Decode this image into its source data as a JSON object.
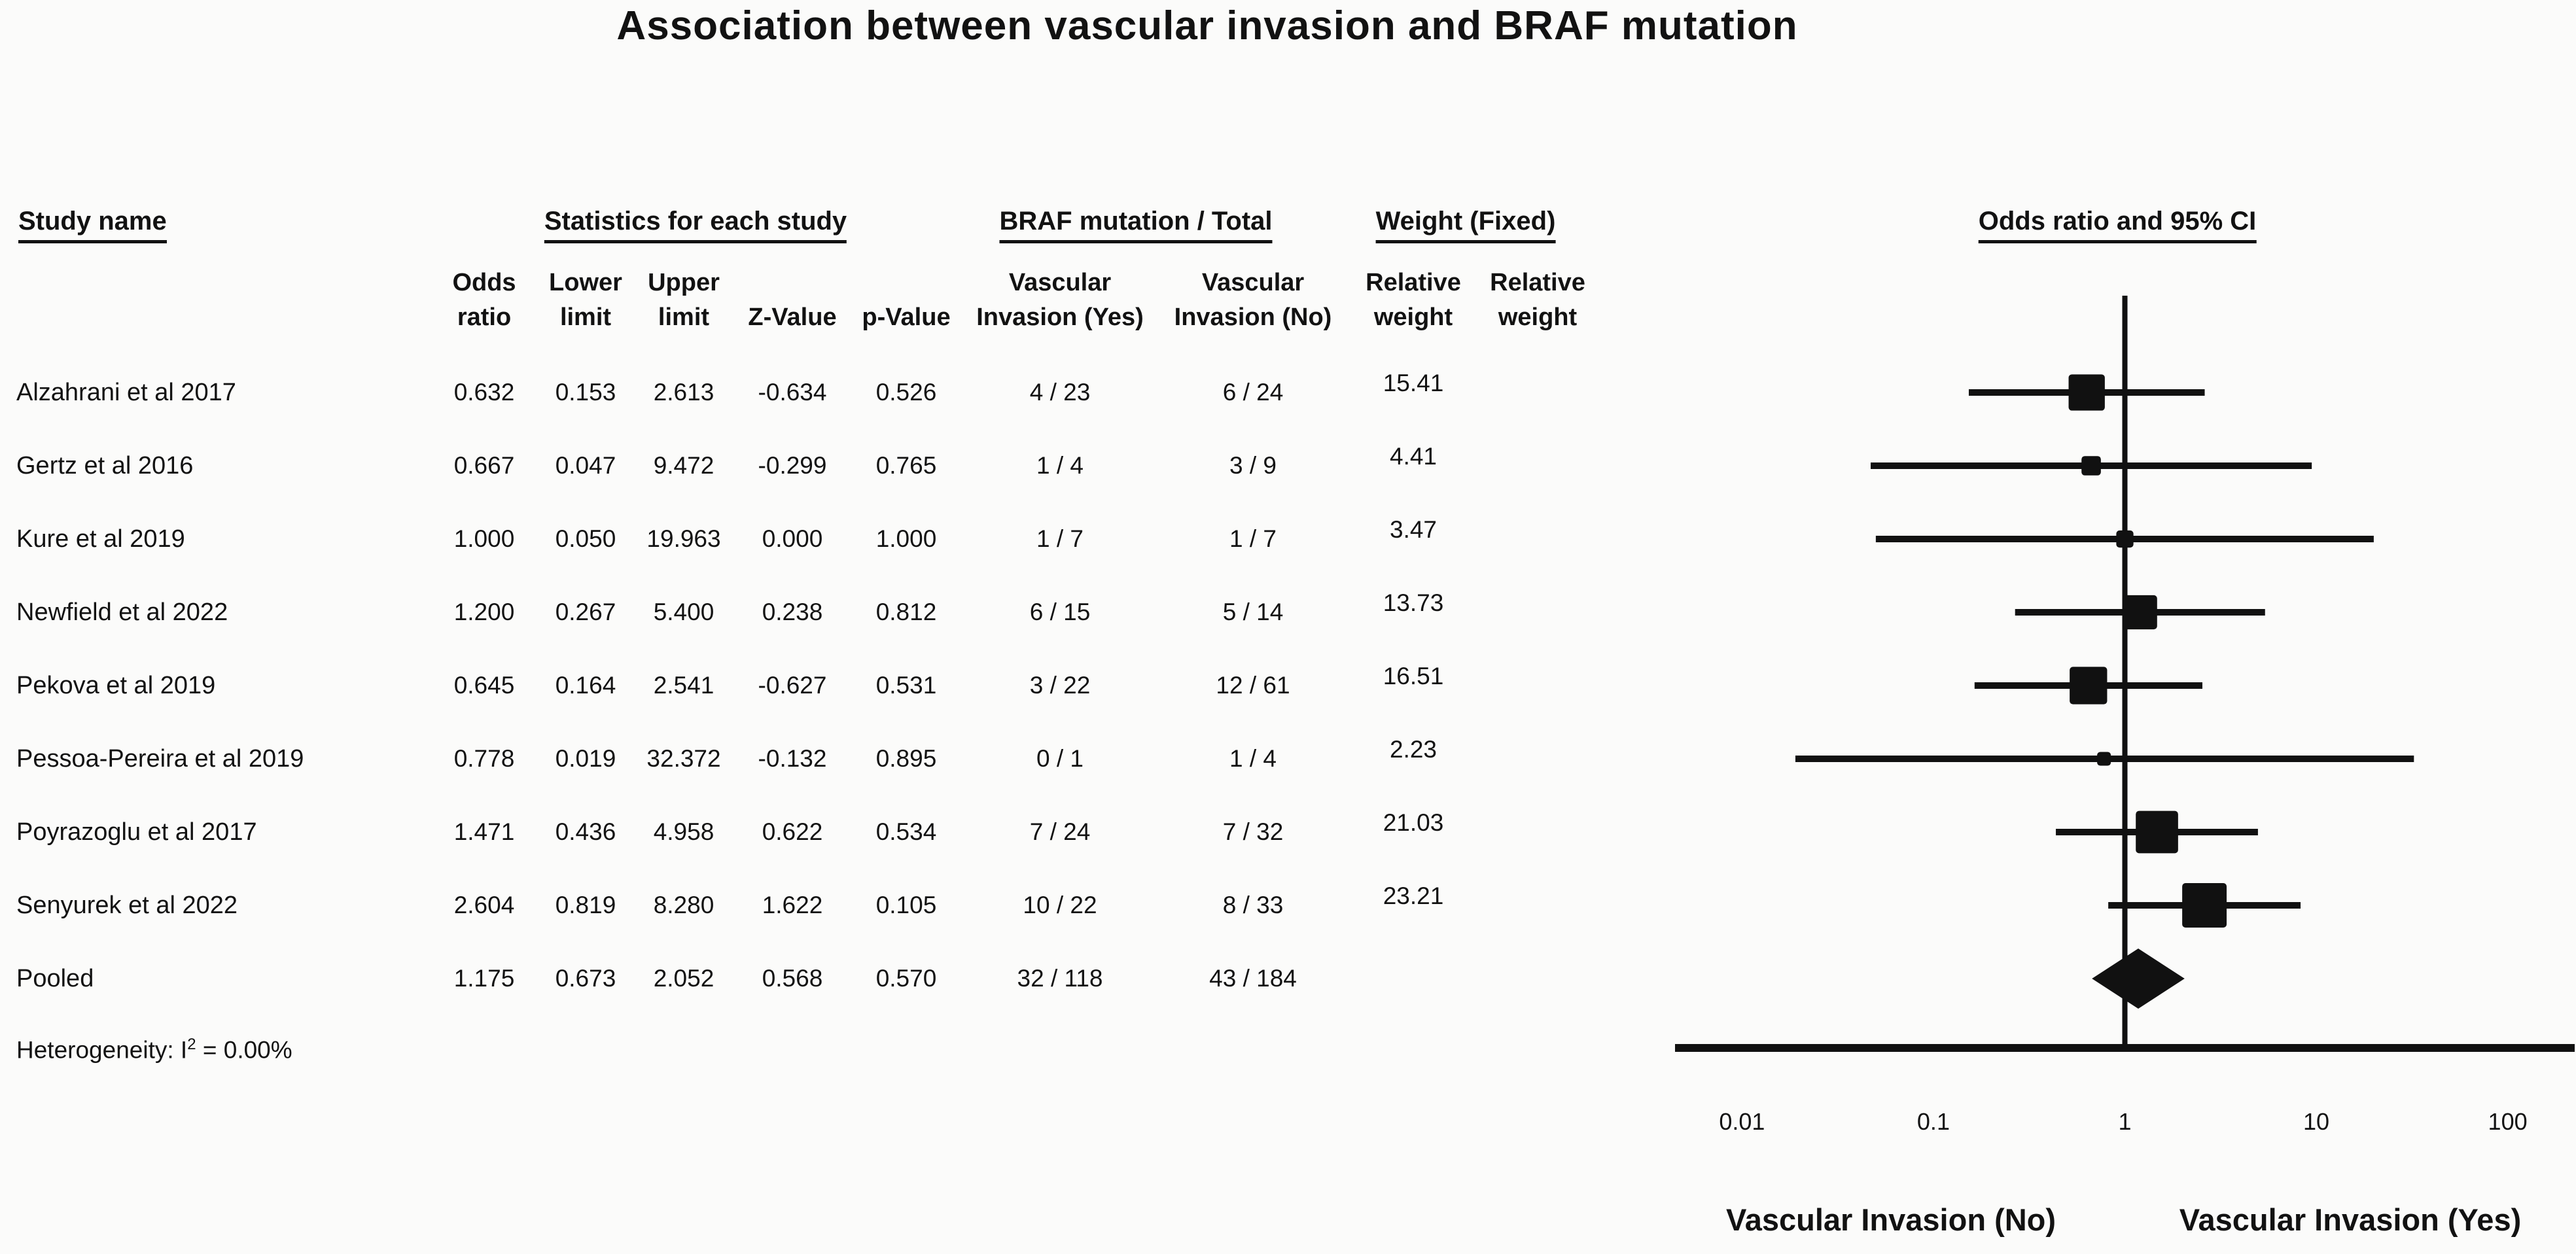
{
  "page": {
    "background": "#fbfbfa",
    "text_color": "#121212"
  },
  "chart_data": {
    "type": "forest",
    "title": "Association between vascular invasion and BRAF mutation",
    "plot_title": "Odds ratio and 95% CI",
    "marker_color": "#111111",
    "group_headers": {
      "study": "Study name",
      "statistics": "Statistics for each study",
      "braf": "BRAF mutation / Total",
      "weight": "Weight (Fixed)"
    },
    "columns": [
      {
        "id": "odds_ratio",
        "line1": "Odds",
        "line2": "ratio"
      },
      {
        "id": "lower_limit",
        "line1": "Lower",
        "line2": "limit"
      },
      {
        "id": "upper_limit",
        "line1": "Upper",
        "line2": "limit"
      },
      {
        "id": "z_value",
        "line1": "",
        "line2": "Z-Value"
      },
      {
        "id": "p_value",
        "line1": "",
        "line2": "p-Value"
      },
      {
        "id": "braf_yes",
        "line1": "Vascular",
        "line2": "Invasion (Yes)"
      },
      {
        "id": "braf_no",
        "line1": "Vascular",
        "line2": "Invasion (No)"
      },
      {
        "id": "relative_weight",
        "line1": "Relative",
        "line2": "weight"
      },
      {
        "id": "relative_weight_2",
        "line1": "Relative",
        "line2": "weight"
      }
    ],
    "studies": [
      {
        "name": "Alzahrani et al 2017",
        "odds_ratio": "0.632",
        "lower_limit": "0.153",
        "upper_limit": "2.613",
        "z_value": "-0.634",
        "p_value": "0.526",
        "braf_yes": "4 / 23",
        "braf_no": "6 / 24",
        "relative_weight": "15.41",
        "is_pooled": false
      },
      {
        "name": "Gertz et al 2016",
        "odds_ratio": "0.667",
        "lower_limit": "0.047",
        "upper_limit": "9.472",
        "z_value": "-0.299",
        "p_value": "0.765",
        "braf_yes": "1 / 4",
        "braf_no": "3 / 9",
        "relative_weight": "4.41",
        "is_pooled": false
      },
      {
        "name": "Kure et al 2019",
        "odds_ratio": "1.000",
        "lower_limit": "0.050",
        "upper_limit": "19.963",
        "z_value": "0.000",
        "p_value": "1.000",
        "braf_yes": "1 / 7",
        "braf_no": "1 / 7",
        "relative_weight": "3.47",
        "is_pooled": false
      },
      {
        "name": "Newfield et al 2022",
        "odds_ratio": "1.200",
        "lower_limit": "0.267",
        "upper_limit": "5.400",
        "z_value": "0.238",
        "p_value": "0.812",
        "braf_yes": "6 / 15",
        "braf_no": "5 / 14",
        "relative_weight": "13.73",
        "is_pooled": false
      },
      {
        "name": "Pekova et al 2019",
        "odds_ratio": "0.645",
        "lower_limit": "0.164",
        "upper_limit": "2.541",
        "z_value": "-0.627",
        "p_value": "0.531",
        "braf_yes": "3 / 22",
        "braf_no": "12 / 61",
        "relative_weight": "16.51",
        "is_pooled": false
      },
      {
        "name": "Pessoa-Pereira et al 2019",
        "odds_ratio": "0.778",
        "lower_limit": "0.019",
        "upper_limit": "32.372",
        "z_value": "-0.132",
        "p_value": "0.895",
        "braf_yes": "0 / 1",
        "braf_no": "1 / 4",
        "relative_weight": "2.23",
        "is_pooled": false
      },
      {
        "name": "Poyrazoglu et al 2017",
        "odds_ratio": "1.471",
        "lower_limit": "0.436",
        "upper_limit": "4.958",
        "z_value": "0.622",
        "p_value": "0.534",
        "braf_yes": "7 / 24",
        "braf_no": "7 / 32",
        "relative_weight": "21.03",
        "is_pooled": false
      },
      {
        "name": "Senyurek et al 2022",
        "odds_ratio": "2.604",
        "lower_limit": "0.819",
        "upper_limit": "8.280",
        "z_value": "1.622",
        "p_value": "0.105",
        "braf_yes": "10 / 22",
        "braf_no": "8 / 33",
        "relative_weight": "23.21",
        "is_pooled": false
      },
      {
        "name": "Pooled",
        "odds_ratio": "1.175",
        "lower_limit": "0.673",
        "upper_limit": "2.052",
        "z_value": "0.568",
        "p_value": "0.570",
        "braf_yes": "32 / 118",
        "braf_no": "43 / 184",
        "relative_weight": "",
        "is_pooled": true
      }
    ],
    "heterogeneity": {
      "prefix": "Heterogeneity: I",
      "sup": "2",
      "suffix": " = 0.00%"
    },
    "x_axis": {
      "scale": "log10",
      "min": 0.01,
      "max": 100,
      "ticks": [
        {
          "label": "0.01",
          "value": 0.01
        },
        {
          "label": "0.1",
          "value": 0.1
        },
        {
          "label": "1",
          "value": 1
        },
        {
          "label": "10",
          "value": 10
        },
        {
          "label": "100",
          "value": 100
        }
      ]
    },
    "direction_labels": {
      "left": "Vascular Invasion (No)",
      "right": "Vascular Invasion (Yes)"
    }
  }
}
